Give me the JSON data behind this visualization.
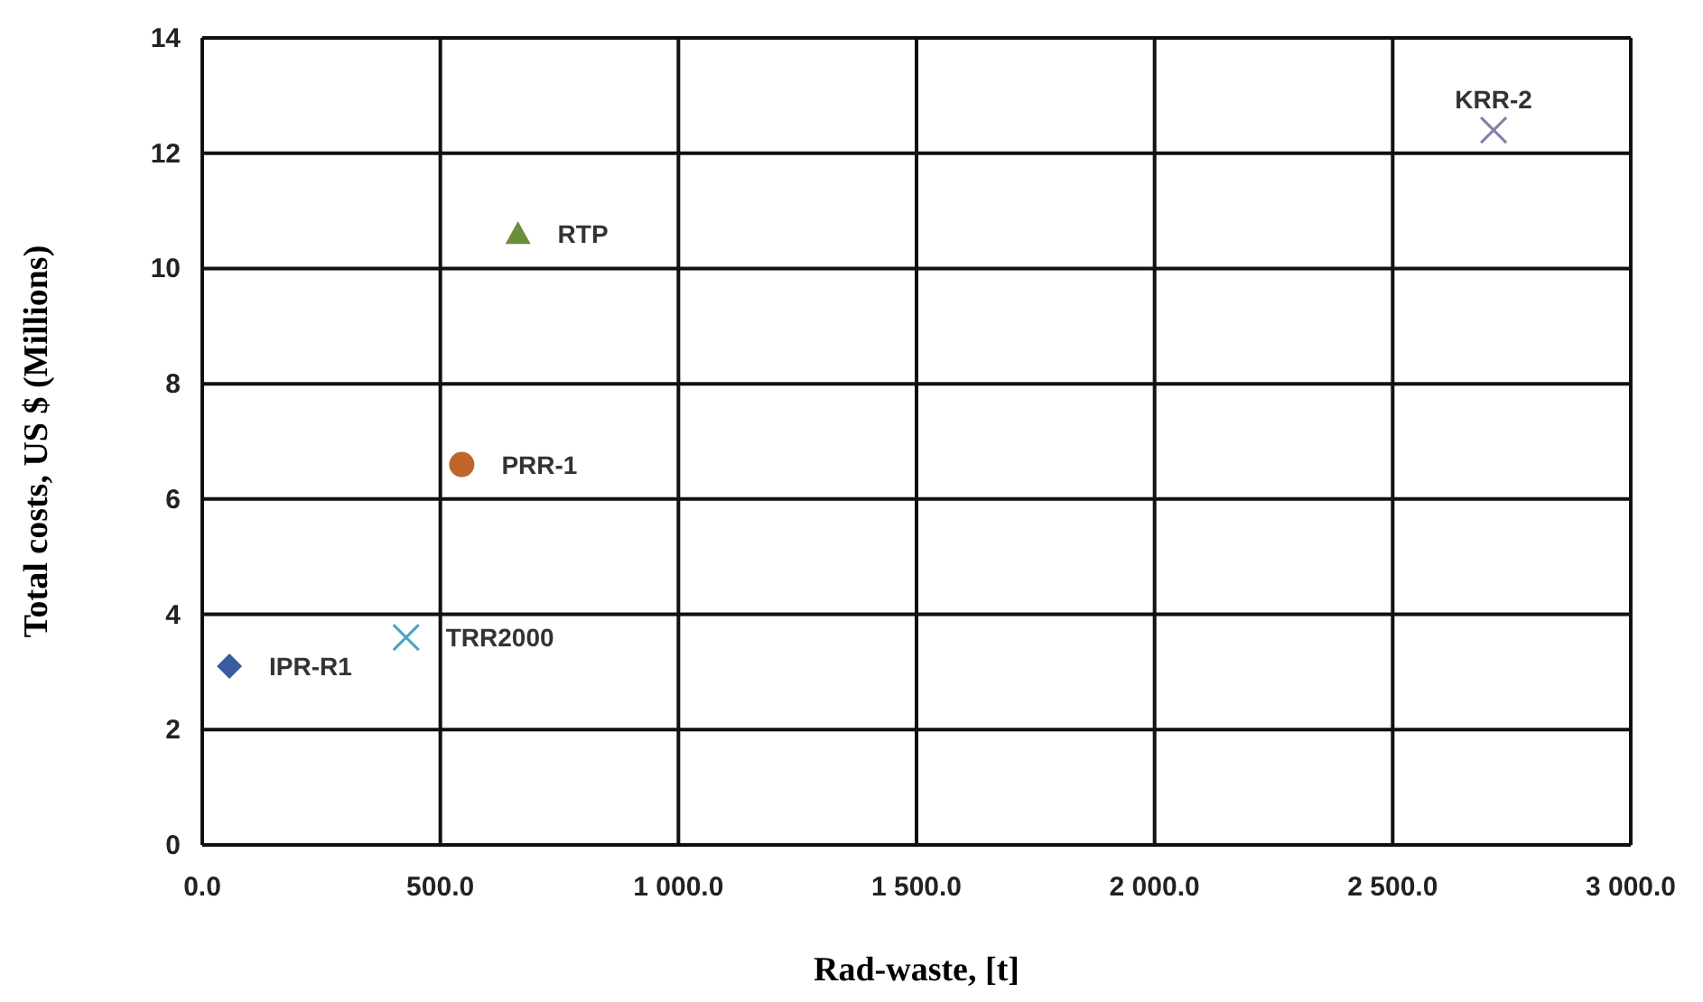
{
  "chart_data": {
    "type": "scatter",
    "xlabel": "Rad-waste, [t]",
    "ylabel": "Total costs, US $ (Millions)",
    "xlim": [
      0,
      3000
    ],
    "ylim": [
      0,
      14
    ],
    "xticks": [
      {
        "value": 0,
        "label": "0.0"
      },
      {
        "value": 500,
        "label": "500.0"
      },
      {
        "value": 1000,
        "label": "1 000.0"
      },
      {
        "value": 1500,
        "label": "1 500.0"
      },
      {
        "value": 2000,
        "label": "2 000.0"
      },
      {
        "value": 2500,
        "label": "2 500.0"
      },
      {
        "value": 3000,
        "label": "3 000.0"
      }
    ],
    "yticks": [
      0,
      2,
      4,
      6,
      8,
      10,
      12,
      14
    ],
    "grid": true,
    "series": [
      {
        "name": "IPR-R1",
        "color": "#3a5ba0",
        "marker": "diamond",
        "x": [
          57
        ],
        "values": [
          3.1
        ]
      },
      {
        "name": "TRR2000",
        "color": "#4ba3c3",
        "marker": "cross",
        "x": [
          428
        ],
        "values": [
          3.6
        ]
      },
      {
        "name": "PRR-1",
        "color": "#c0662a",
        "marker": "circle",
        "x": [
          545
        ],
        "values": [
          6.6
        ]
      },
      {
        "name": "RTP",
        "color": "#6a8f3a",
        "marker": "triangle",
        "x": [
          663
        ],
        "values": [
          10.6
        ]
      },
      {
        "name": "KRR-2",
        "color": "#8080a8",
        "marker": "cross",
        "x": [
          2712
        ],
        "values": [
          12.4
        ]
      }
    ]
  }
}
